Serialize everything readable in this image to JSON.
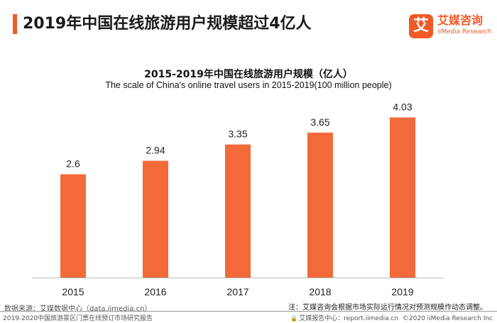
{
  "header": {
    "title": "2019年中国在线旅游用户规模超过4亿人"
  },
  "logo": {
    "mark": "艾",
    "name_cn": "艾媒咨询",
    "name_en": "iiMedia Research"
  },
  "chart_data": {
    "type": "bar",
    "title": "2015-2019年中国在线旅游用户规模（亿人）",
    "subtitle": "The scale of China's online travel users in 2015-2019(100 million people)",
    "categories": [
      "2015",
      "2016",
      "2017",
      "2018",
      "2019"
    ],
    "values": [
      2.6,
      2.94,
      3.35,
      3.65,
      4.03
    ],
    "value_labels": [
      "2.6",
      "2.94",
      "3.35",
      "3.65",
      "4.03"
    ],
    "bar_color": "#f26a3a",
    "ylim": [
      0,
      4.7
    ],
    "grid": false
  },
  "footer": {
    "source": "数据来源：艾媒数据中心（data.iimedia.cn）",
    "note": "注：艾媒咨询会根据市场实际运行情况对预测规模作动态调整。",
    "report": "2019-2020中国旅游景区门票在线预订市场研究报告",
    "lock_icon": "lock-icon",
    "site": "艾媒报告中心：report.iimedia.cn",
    "copyright": "©2020  iiMedia Research  Inc"
  }
}
